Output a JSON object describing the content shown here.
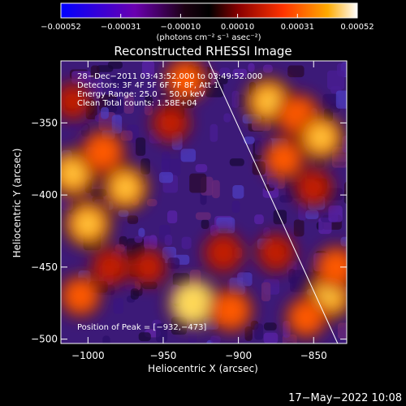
{
  "chart_data": {
    "type": "heatmap",
    "title": "Reconstructed RHESSI Image",
    "xlabel": "Heliocentric X (arcsec)",
    "ylabel": "Heliocentric Y (arcsec)",
    "xlim": [
      -1018,
      -828
    ],
    "ylim": [
      -503,
      -307
    ],
    "x_ticks": [
      -1000,
      -950,
      -900,
      -850
    ],
    "x_tick_labels": [
      "−1000",
      "−950",
      "−900",
      "−850"
    ],
    "y_ticks": [
      -350,
      -400,
      -450,
      -500
    ],
    "y_tick_labels": [
      "−350",
      "−400",
      "−450",
      "−500"
    ],
    "colorbar": {
      "min": -0.00052,
      "max": 0.00052,
      "ticks": [
        -0.00052,
        -0.00031,
        -0.0001,
        0.0001,
        0.00031,
        0.00052
      ],
      "tick_labels": [
        "−0.00052",
        "−0.00031",
        "−0.00010",
        "0.00010",
        "0.00031",
        "0.00052"
      ],
      "unit_label": "(photons cm⁻² s⁻¹ asec⁻²)",
      "colormap": [
        "#0000ff",
        "#7a00b0",
        "#1a0010",
        "#000000",
        "#8a0000",
        "#ff3300",
        "#ffaa00",
        "#ffffff"
      ]
    },
    "annotations": [
      "28−Dec−2011 03:43:52.000 to 03:49:52.000",
      "Detectors: 3F 4F 5F 6F 7F 8F, Att 1",
      "Energy Range: 25.0 − 50.0 keV",
      "Clean     Total counts: 1.58E+04"
    ],
    "peak_label": "Position of Peak = [−932,−473]",
    "limb_line": [
      [
        -920,
        -307
      ],
      [
        -834,
        -503
      ]
    ],
    "bright_regions": [
      {
        "x": -1010,
        "y": -385,
        "level": 0.9
      },
      {
        "x": -990,
        "y": -370,
        "level": 0.8
      },
      {
        "x": -975,
        "y": -395,
        "level": 0.85
      },
      {
        "x": -1000,
        "y": -420,
        "level": 0.9
      },
      {
        "x": -985,
        "y": -450,
        "level": 0.6
      },
      {
        "x": -1005,
        "y": -470,
        "level": 0.7
      },
      {
        "x": -935,
        "y": -320,
        "level": 0.75
      },
      {
        "x": -945,
        "y": -350,
        "level": 0.6
      },
      {
        "x": -930,
        "y": -475,
        "level": 1.0
      },
      {
        "x": -905,
        "y": -480,
        "level": 0.8
      },
      {
        "x": -910,
        "y": -440,
        "level": 0.65
      },
      {
        "x": -880,
        "y": -335,
        "level": 0.9
      },
      {
        "x": -860,
        "y": -345,
        "level": 0.8
      },
      {
        "x": -845,
        "y": -360,
        "level": 0.85
      },
      {
        "x": -870,
        "y": -375,
        "level": 0.7
      },
      {
        "x": -850,
        "y": -395,
        "level": 0.6
      },
      {
        "x": -840,
        "y": -470,
        "level": 0.9
      },
      {
        "x": -835,
        "y": -450,
        "level": 0.75
      },
      {
        "x": -855,
        "y": -485,
        "level": 0.7
      },
      {
        "x": -875,
        "y": -440,
        "level": 0.6
      },
      {
        "x": -960,
        "y": -450,
        "level": 0.55
      },
      {
        "x": -1010,
        "y": -335,
        "level": 0.55
      }
    ]
  },
  "timestamp": "17−May−2022 10:08"
}
